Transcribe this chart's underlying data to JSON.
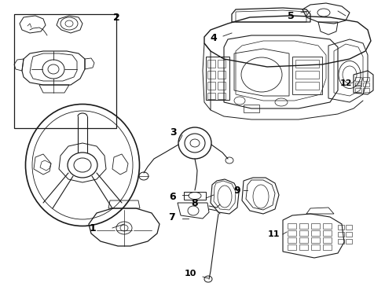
{
  "background_color": "#ffffff",
  "line_color": "#1a1a1a",
  "label_color": "#000000",
  "fig_width": 4.9,
  "fig_height": 3.6,
  "dpi": 100
}
